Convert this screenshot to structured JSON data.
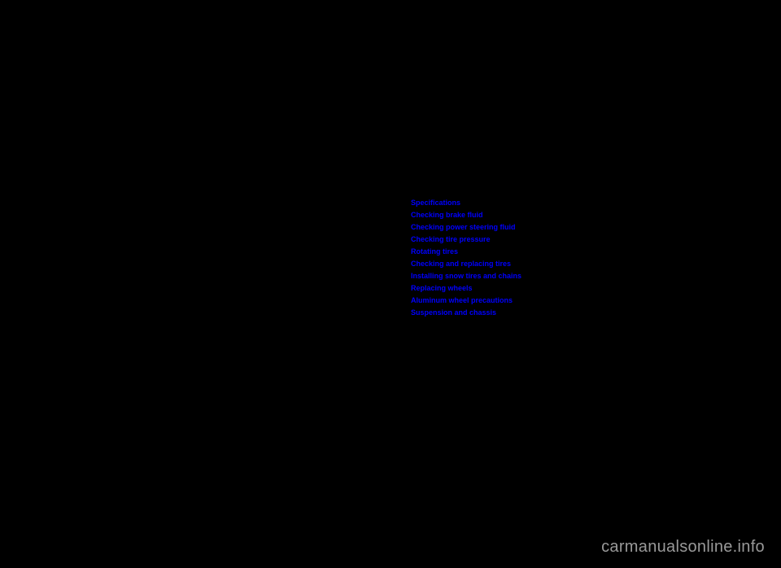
{
  "links": [
    "Specifications",
    "Checking brake fluid",
    "Checking power steering fluid",
    "Checking tire pressure",
    "Rotating tires",
    "Checking and replacing tires",
    "Installing snow tires and chains",
    "Replacing wheels",
    "Aluminum wheel precautions",
    "Suspension and chassis"
  ],
  "watermark": "carmanualsonline.info",
  "colors": {
    "background": "#000000",
    "link": "#0000ff",
    "watermark": "#999999"
  }
}
